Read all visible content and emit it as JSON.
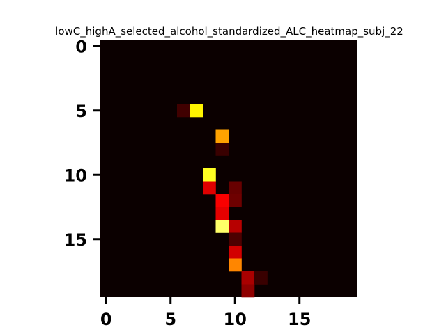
{
  "chart_data": {
    "type": "heatmap",
    "title": "lowC_highA_selected_alcohol_standardized_ALC_heatmap_subj_22",
    "xlabel": "",
    "ylabel": "",
    "rows": 20,
    "cols": 20,
    "colormap": "hot",
    "value_range": [
      0,
      1
    ],
    "x_ticks": [
      0,
      5,
      10,
      15
    ],
    "y_ticks": [
      0,
      5,
      10,
      15
    ],
    "x_tick_labels": [
      "0",
      "5",
      "10",
      "15"
    ],
    "y_tick_labels": [
      "0",
      "5",
      "10",
      "15"
    ],
    "grid": false,
    "colorbar": false,
    "cells": [
      {
        "row": 5,
        "col": 6,
        "value": 0.08
      },
      {
        "row": 5,
        "col": 7,
        "value": 0.72
      },
      {
        "row": 7,
        "col": 9,
        "value": 0.6
      },
      {
        "row": 8,
        "col": 9,
        "value": 0.07
      },
      {
        "row": 10,
        "col": 8,
        "value": 0.78
      },
      {
        "row": 11,
        "col": 8,
        "value": 0.32
      },
      {
        "row": 11,
        "col": 10,
        "value": 0.14
      },
      {
        "row": 12,
        "col": 9,
        "value": 0.36
      },
      {
        "row": 12,
        "col": 10,
        "value": 0.15
      },
      {
        "row": 13,
        "col": 9,
        "value": 0.33
      },
      {
        "row": 14,
        "col": 9,
        "value": 0.85
      },
      {
        "row": 14,
        "col": 10,
        "value": 0.26
      },
      {
        "row": 15,
        "col": 10,
        "value": 0.1
      },
      {
        "row": 16,
        "col": 10,
        "value": 0.3
      },
      {
        "row": 17,
        "col": 10,
        "value": 0.56
      },
      {
        "row": 18,
        "col": 11,
        "value": 0.24
      },
      {
        "row": 18,
        "col": 12,
        "value": 0.07
      },
      {
        "row": 19,
        "col": 11,
        "value": 0.2
      }
    ]
  }
}
